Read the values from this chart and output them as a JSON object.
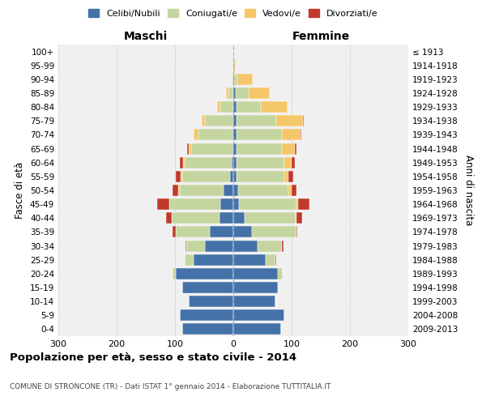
{
  "age_groups": [
    "0-4",
    "5-9",
    "10-14",
    "15-19",
    "20-24",
    "25-29",
    "30-34",
    "35-39",
    "40-44",
    "45-49",
    "50-54",
    "55-59",
    "60-64",
    "65-69",
    "70-74",
    "75-79",
    "80-84",
    "85-89",
    "90-94",
    "95-99",
    "100+"
  ],
  "birth_years": [
    "2009-2013",
    "2004-2008",
    "1999-2003",
    "1994-1998",
    "1989-1993",
    "1984-1988",
    "1979-1983",
    "1974-1978",
    "1969-1973",
    "1964-1968",
    "1959-1963",
    "1954-1958",
    "1949-1953",
    "1944-1948",
    "1939-1943",
    "1934-1938",
    "1929-1933",
    "1924-1928",
    "1919-1923",
    "1914-1918",
    "≤ 1913"
  ],
  "male_celibe": [
    87,
    92,
    77,
    87,
    98,
    68,
    48,
    40,
    24,
    22,
    16,
    6,
    3,
    2,
    2,
    0,
    0,
    0,
    0,
    0,
    0
  ],
  "male_coniugato": [
    0,
    0,
    0,
    0,
    6,
    16,
    32,
    58,
    82,
    88,
    76,
    82,
    80,
    70,
    58,
    48,
    22,
    9,
    2,
    0,
    0
  ],
  "male_vedovo": [
    0,
    0,
    0,
    0,
    0,
    0,
    0,
    0,
    0,
    0,
    2,
    2,
    3,
    5,
    8,
    6,
    6,
    3,
    1,
    0,
    0
  ],
  "male_divorziato": [
    0,
    0,
    0,
    0,
    0,
    0,
    2,
    6,
    9,
    20,
    10,
    8,
    5,
    2,
    0,
    0,
    0,
    0,
    0,
    0,
    0
  ],
  "female_nubile": [
    82,
    87,
    72,
    76,
    76,
    56,
    42,
    32,
    20,
    10,
    8,
    5,
    5,
    5,
    5,
    5,
    5,
    4,
    2,
    1,
    1
  ],
  "female_coniugata": [
    0,
    0,
    0,
    2,
    9,
    16,
    42,
    76,
    87,
    98,
    87,
    82,
    82,
    78,
    78,
    68,
    42,
    22,
    5,
    0,
    0
  ],
  "female_vedova": [
    0,
    0,
    0,
    0,
    0,
    0,
    0,
    0,
    2,
    3,
    5,
    8,
    13,
    22,
    32,
    46,
    46,
    36,
    26,
    3,
    0
  ],
  "female_divorziata": [
    0,
    0,
    0,
    0,
    0,
    2,
    2,
    2,
    9,
    20,
    8,
    8,
    5,
    3,
    2,
    2,
    0,
    0,
    0,
    0,
    0
  ],
  "color_celibe": "#4472a8",
  "color_coniugato": "#c5d5a0",
  "color_vedovo": "#f5c76a",
  "color_divorziato": "#c0392b",
  "title": "Popolazione per età, sesso e stato civile - 2014",
  "subtitle": "COMUNE DI STRONCONE (TR) - Dati ISTAT 1° gennaio 2014 - Elaborazione TUTTITALIA.IT",
  "label_maschi": "Maschi",
  "label_femmine": "Femmine",
  "ylabel_left": "Fasce di età",
  "ylabel_right": "Anni di nascita",
  "legend_labels": [
    "Celibi/Nubili",
    "Coniugati/e",
    "Vedovi/e",
    "Divorziati/e"
  ],
  "xlim": 300,
  "bg_plot": "#f0f0f0",
  "bg_fig": "#ffffff",
  "grid_color": "#cccccc"
}
